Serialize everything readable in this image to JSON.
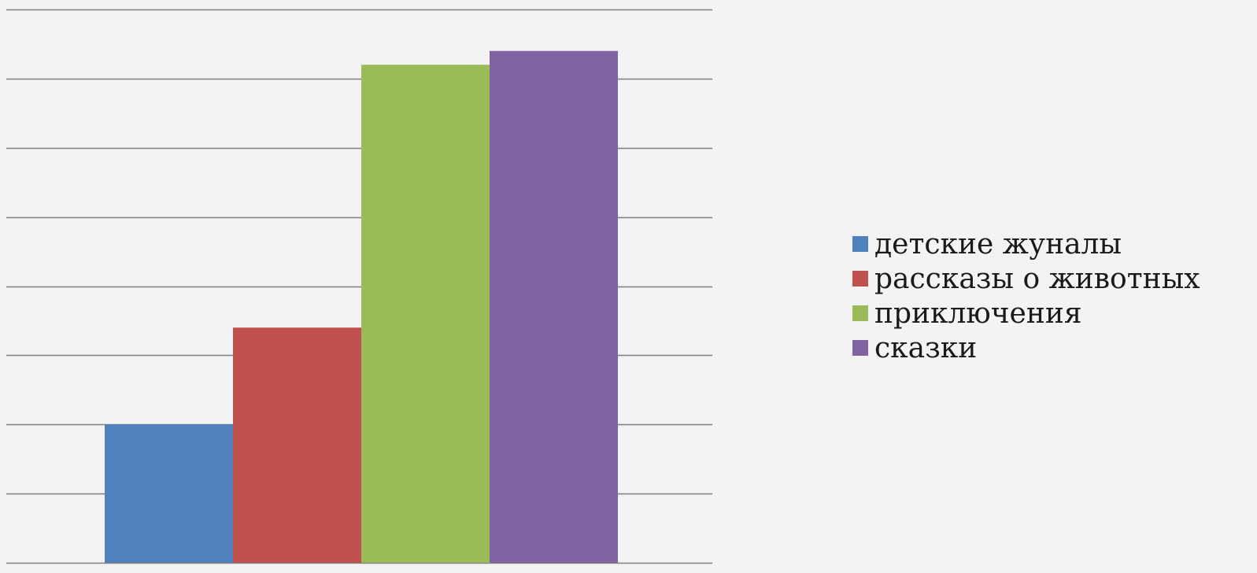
{
  "chart_data": {
    "type": "bar",
    "categories": [
      "детские жуналы",
      "рассказы о животных",
      "приключения",
      "сказки"
    ],
    "values": [
      2,
      3.4,
      7.2,
      7.4
    ],
    "colors": [
      "#4f81bd",
      "#c0504d",
      "#9bbb59",
      "#8064a2"
    ],
    "ylim": [
      0,
      8
    ],
    "grid": true,
    "legend": "right"
  }
}
